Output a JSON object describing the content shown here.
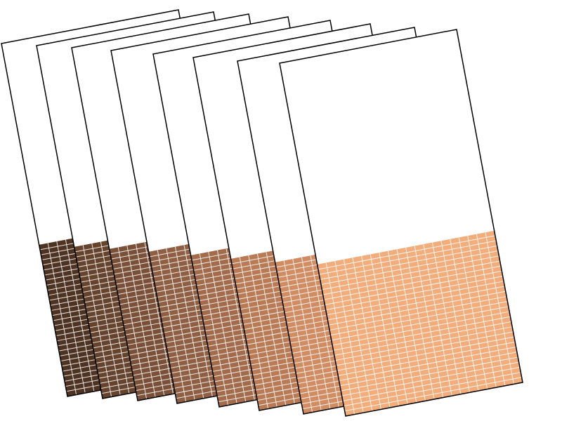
{
  "cards": [
    {
      "color": "#4e3322"
    },
    {
      "color": "#66432d"
    },
    {
      "color": "#7a5038"
    },
    {
      "color": "#8e5f43"
    },
    {
      "color": "#a26c4c"
    },
    {
      "color": "#b87b56"
    },
    {
      "color": "#d08c62"
    },
    {
      "color": "#f2ad7c"
    }
  ]
}
